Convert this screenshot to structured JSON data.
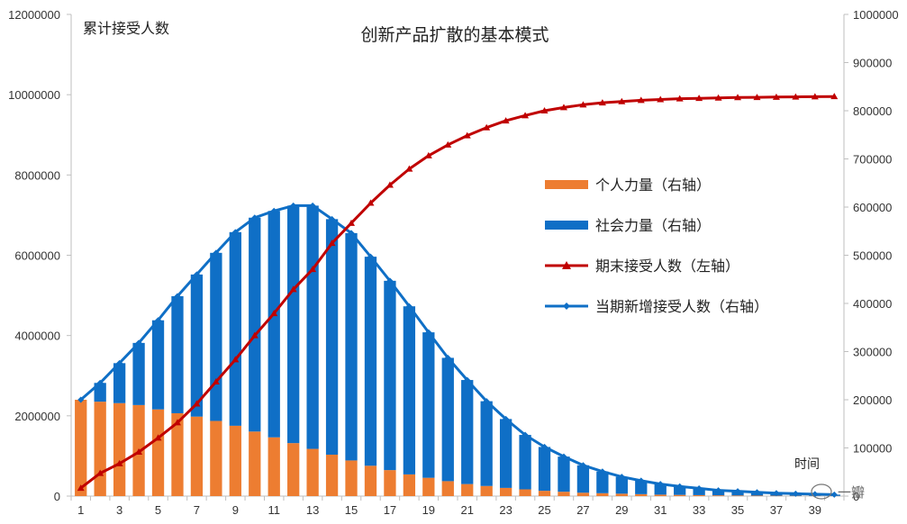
{
  "chart_data": {
    "type": "bar+line",
    "title": "创新产品扩散的基本模式",
    "ylabel_left": "累计接受人数",
    "xlabel": "时间",
    "watermark": "一瓣",
    "x": [
      1,
      2,
      3,
      4,
      5,
      6,
      7,
      8,
      9,
      10,
      11,
      12,
      13,
      14,
      15,
      16,
      17,
      18,
      19,
      20,
      21,
      22,
      23,
      24,
      25,
      26,
      27,
      28,
      29,
      30,
      31,
      32,
      33,
      34,
      35,
      36,
      37,
      38,
      39,
      40
    ],
    "x_tick_labels": [
      "1",
      "3",
      "5",
      "7",
      "9",
      "11",
      "13",
      "15",
      "17",
      "19",
      "21",
      "23",
      "25",
      "27",
      "29",
      "31",
      "33",
      "35",
      "37",
      "39"
    ],
    "y_left": {
      "min": 0,
      "max": 12000000,
      "ticks": [
        "0",
        "2000000",
        "4000000",
        "6000000",
        "8000000",
        "10000000",
        "12000000"
      ]
    },
    "y_right": {
      "min": 0,
      "max": 1000000,
      "ticks": [
        "0",
        "100000",
        "200000",
        "300000",
        "400000",
        "500000",
        "600000",
        "700000",
        "800000",
        "900000",
        "1000000"
      ]
    },
    "colors": {
      "individual": "#ED7D31",
      "social": "#0F6FC6",
      "cumulative": "#C00000",
      "new": "#0F6FC6",
      "axis": "#BFBFBF"
    },
    "series": [
      {
        "name": "个人力量（右轴）",
        "kind": "stacked-bar",
        "axis": "right",
        "values": [
          200000,
          196000,
          193000,
          189000,
          180000,
          172000,
          165000,
          156000,
          146000,
          134000,
          122000,
          110000,
          98000,
          86000,
          74000,
          63000,
          54000,
          45000,
          38000,
          31000,
          25000,
          21000,
          17000,
          14000,
          11000,
          9000,
          7000,
          6000,
          5000,
          4000,
          3000,
          2500,
          2000,
          1600,
          1300,
          1000,
          800,
          600,
          500,
          400
        ]
      },
      {
        "name": "社会力量（右轴）",
        "kind": "stacked-bar",
        "axis": "right",
        "values": [
          0,
          39000,
          83000,
          129000,
          185000,
          243000,
          295000,
          349000,
          402000,
          444000,
          470000,
          493000,
          505000,
          489000,
          472000,
          434000,
          393000,
          349000,
          302000,
          256000,
          216000,
          176000,
          143000,
          113000,
          91000,
          73000,
          57000,
          45000,
          35000,
          28000,
          22000,
          17500,
          14000,
          10400,
          8700,
          7000,
          5200,
          4400,
          3500,
          2600
        ]
      },
      {
        "name": "期末接受人数（左轴）",
        "kind": "line",
        "axis": "left",
        "values": [
          200000,
          570000,
          810000,
          1100000,
          1450000,
          1830000,
          2300000,
          2850000,
          3400000,
          4000000,
          4550000,
          5150000,
          5650000,
          6300000,
          6800000,
          7300000,
          7750000,
          8150000,
          8480000,
          8750000,
          8980000,
          9180000,
          9350000,
          9480000,
          9600000,
          9680000,
          9750000,
          9800000,
          9830000,
          9860000,
          9880000,
          9900000,
          9910000,
          9920000,
          9930000,
          9935000,
          9940000,
          9945000,
          9950000,
          9955000
        ]
      },
      {
        "name": "当期新增接受人数（右轴）",
        "kind": "line",
        "axis": "right",
        "values": [
          200000,
          235000,
          276000,
          318000,
          365000,
          415000,
          460000,
          505000,
          548000,
          578000,
          592000,
          603000,
          603000,
          575000,
          546000,
          497000,
          447000,
          394000,
          340000,
          287000,
          241000,
          197000,
          160000,
          127000,
          102000,
          82000,
          64000,
          51000,
          40000,
          32000,
          25000,
          20000,
          16000,
          12000,
          10000,
          8000,
          6000,
          5000,
          4000,
          3000
        ]
      }
    ],
    "legend": [
      "个人力量（右轴）",
      "社会力量（右轴）",
      "期末接受人数（左轴）",
      "当期新增接受人数（右轴）"
    ],
    "legend_position": "right-middle"
  }
}
